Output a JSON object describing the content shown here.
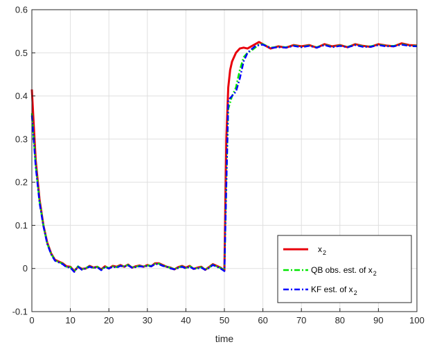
{
  "chart_data": {
    "type": "line",
    "title": "",
    "xlabel": "time",
    "ylabel": "",
    "xlim": [
      0,
      100
    ],
    "ylim": [
      -0.1,
      0.6
    ],
    "xticks": [
      "0",
      "10",
      "20",
      "30",
      "40",
      "50",
      "60",
      "70",
      "80",
      "90",
      "100"
    ],
    "yticks": [
      "-0.1",
      "0",
      "0.1",
      "0.2",
      "0.3",
      "0.4",
      "0.5",
      "0.6"
    ],
    "grid": true,
    "legend_position": "bottom-right",
    "series": [
      {
        "name": "x",
        "name_subscript": "2",
        "color": "#e8000b",
        "style": "solid",
        "x": [
          0,
          0.5,
          1,
          2,
          3,
          4,
          5,
          6,
          7,
          8,
          9,
          10,
          11,
          12,
          13,
          14,
          15,
          16,
          17,
          18,
          19,
          20,
          21,
          22,
          23,
          24,
          25,
          26,
          27,
          28,
          29,
          30,
          31,
          32,
          33,
          34,
          35,
          36,
          37,
          38,
          39,
          40,
          41,
          42,
          43,
          44,
          45,
          46,
          47,
          48,
          49,
          50,
          50.5,
          51,
          51.5,
          52,
          52.5,
          53,
          54,
          55,
          56,
          57,
          58,
          59,
          60,
          62,
          64,
          66,
          68,
          70,
          72,
          74,
          76,
          78,
          80,
          82,
          84,
          86,
          88,
          90,
          92,
          94,
          96,
          98,
          100
        ],
        "y": [
          0.415,
          0.33,
          0.25,
          0.16,
          0.1,
          0.06,
          0.035,
          0.02,
          0.016,
          0.012,
          0.005,
          0.004,
          -0.006,
          0.004,
          -0.001,
          0.0,
          0.006,
          0.002,
          0.004,
          -0.002,
          0.005,
          0.0,
          0.006,
          0.004,
          0.008,
          0.004,
          0.009,
          0.002,
          0.005,
          0.007,
          0.004,
          0.008,
          0.005,
          0.012,
          0.012,
          0.008,
          0.004,
          0.002,
          -0.002,
          0.003,
          0.006,
          0.002,
          0.006,
          -0.001,
          0.002,
          0.004,
          -0.003,
          0.003,
          0.01,
          0.006,
          0.002,
          -0.005,
          0.3,
          0.42,
          0.46,
          0.48,
          0.49,
          0.5,
          0.51,
          0.512,
          0.51,
          0.515,
          0.52,
          0.525,
          0.52,
          0.51,
          0.515,
          0.512,
          0.518,
          0.515,
          0.518,
          0.512,
          0.52,
          0.515,
          0.518,
          0.513,
          0.52,
          0.516,
          0.514,
          0.52,
          0.517,
          0.515,
          0.522,
          0.518,
          0.517
        ]
      },
      {
        "name": "QB obs. est. of x",
        "name_subscript": "2",
        "color": "#00e600",
        "style": "dashdot",
        "x": [
          0,
          0.5,
          1,
          2,
          3,
          4,
          5,
          6,
          7,
          8,
          9,
          10,
          11,
          12,
          13,
          14,
          15,
          16,
          17,
          18,
          19,
          20,
          21,
          22,
          23,
          24,
          25,
          26,
          27,
          28,
          29,
          30,
          31,
          32,
          33,
          34,
          35,
          36,
          37,
          38,
          39,
          40,
          41,
          42,
          43,
          44,
          45,
          46,
          47,
          48,
          49,
          50,
          50.5,
          51,
          52,
          53,
          54,
          55,
          56,
          57,
          58,
          59,
          60,
          62,
          64,
          66,
          68,
          70,
          72,
          74,
          76,
          78,
          80,
          82,
          84,
          86,
          88,
          90,
          92,
          94,
          96,
          98,
          100
        ],
        "y": [
          0.36,
          0.3,
          0.24,
          0.155,
          0.1,
          0.058,
          0.034,
          0.019,
          0.015,
          0.011,
          0.004,
          0.003,
          -0.007,
          0.005,
          -0.002,
          0.001,
          0.005,
          0.002,
          0.004,
          -0.003,
          0.004,
          0.001,
          0.005,
          0.003,
          0.007,
          0.005,
          0.008,
          0.003,
          0.004,
          0.006,
          0.005,
          0.007,
          0.006,
          0.011,
          0.011,
          0.007,
          0.005,
          0.001,
          -0.001,
          0.002,
          0.005,
          0.001,
          0.005,
          0.0,
          0.001,
          0.003,
          -0.002,
          0.002,
          0.009,
          0.005,
          0.001,
          -0.004,
          0.2,
          0.37,
          0.4,
          0.42,
          0.46,
          0.49,
          0.5,
          0.505,
          0.512,
          0.52,
          0.52,
          0.512,
          0.514,
          0.513,
          0.517,
          0.514,
          0.517,
          0.513,
          0.519,
          0.514,
          0.517,
          0.514,
          0.519,
          0.515,
          0.515,
          0.519,
          0.516,
          0.516,
          0.52,
          0.517,
          0.516
        ]
      },
      {
        "name": "KF est. of x",
        "name_subscript": "2",
        "color": "#0000ff",
        "style": "dashdot",
        "x": [
          0,
          0.5,
          1,
          2,
          3,
          4,
          5,
          6,
          7,
          8,
          9,
          10,
          11,
          12,
          13,
          14,
          15,
          16,
          17,
          18,
          19,
          20,
          21,
          22,
          23,
          24,
          25,
          26,
          27,
          28,
          29,
          30,
          31,
          32,
          33,
          34,
          35,
          36,
          37,
          38,
          39,
          40,
          41,
          42,
          43,
          44,
          45,
          46,
          47,
          48,
          49,
          50,
          50.5,
          51,
          52,
          53,
          54,
          55,
          56,
          57,
          58,
          59,
          60,
          62,
          64,
          66,
          68,
          70,
          72,
          74,
          76,
          78,
          80,
          82,
          84,
          86,
          88,
          90,
          92,
          94,
          96,
          98,
          100
        ],
        "y": [
          0.355,
          0.295,
          0.235,
          0.152,
          0.098,
          0.057,
          0.033,
          0.018,
          0.014,
          0.01,
          0.003,
          0.002,
          -0.008,
          0.004,
          -0.003,
          0.0,
          0.004,
          0.001,
          0.003,
          -0.004,
          0.003,
          0.0,
          0.004,
          0.002,
          0.006,
          0.004,
          0.007,
          0.002,
          0.003,
          0.005,
          0.004,
          0.006,
          0.005,
          0.01,
          0.01,
          0.006,
          0.004,
          0.0,
          -0.002,
          0.001,
          0.004,
          0.0,
          0.004,
          -0.001,
          0.0,
          0.002,
          -0.003,
          0.001,
          0.008,
          0.004,
          0.0,
          -0.006,
          0.19,
          0.39,
          0.4,
          0.41,
          0.44,
          0.48,
          0.5,
          0.508,
          0.515,
          0.518,
          0.519,
          0.511,
          0.513,
          0.512,
          0.516,
          0.513,
          0.516,
          0.512,
          0.518,
          0.513,
          0.516,
          0.513,
          0.518,
          0.514,
          0.514,
          0.518,
          0.515,
          0.515,
          0.519,
          0.516,
          0.515
        ]
      }
    ]
  }
}
